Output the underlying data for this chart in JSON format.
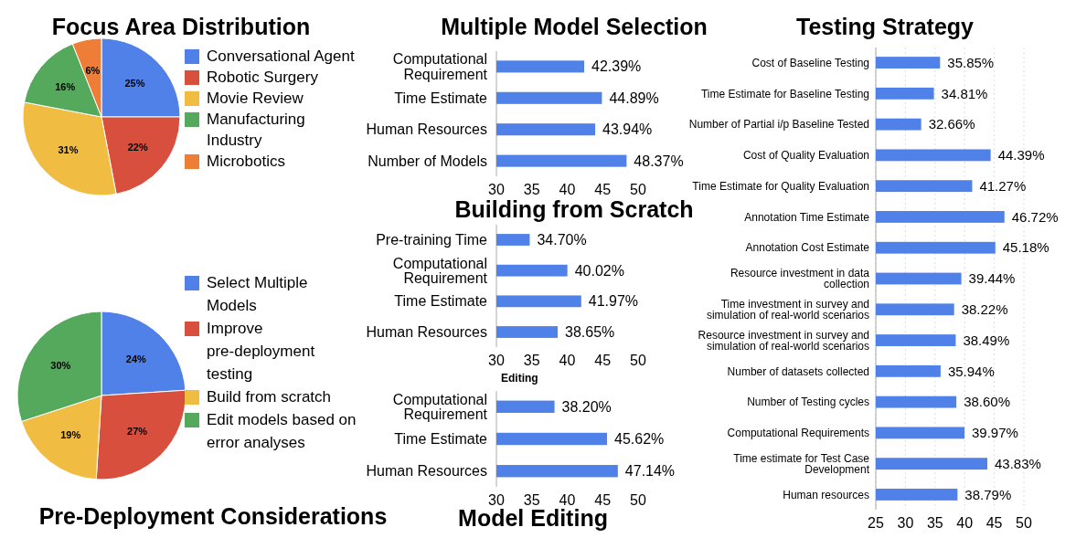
{
  "chart_data": [
    {
      "type": "pie",
      "title": "Focus Area Distribution",
      "categories": [
        "Conversational Agent",
        "Robotic Surgery",
        "Movie Review",
        "Manufacturing Industry",
        "Microbotics"
      ],
      "values": [
        25,
        22,
        31,
        16,
        6
      ],
      "colors": [
        "#4f81e8",
        "#d94f3d",
        "#f0bd42",
        "#55a95c",
        "#ee7d37"
      ],
      "value_labels": [
        "25%",
        "22%",
        "31%",
        "16%",
        "6%"
      ],
      "legend": "right"
    },
    {
      "type": "pie",
      "title": "Pre-Deployment Considerations",
      "categories": [
        "Select Multiple Models",
        "Improve pre-deployment testing",
        "Build from scratch",
        "Edit models based on error analyses"
      ],
      "values": [
        24,
        27,
        19,
        30
      ],
      "colors": [
        "#4f81e8",
        "#d94f3d",
        "#f0bd42",
        "#55a95c"
      ],
      "value_labels": [
        "24%",
        "27%",
        "19%",
        "30%"
      ],
      "legend": "right"
    },
    {
      "type": "bar",
      "orientation": "horizontal",
      "title": "Multiple Model Selection",
      "categories": [
        "Computational Requirement",
        "Time Estimate",
        "Human Resources",
        "Number of Models"
      ],
      "values": [
        42.39,
        44.89,
        43.94,
        48.37
      ],
      "color": "#4f81e8",
      "value_labels": [
        "42.39%",
        "44.89%",
        "43.94%",
        "48.37%"
      ],
      "xlim": [
        30,
        50
      ],
      "xticks": [
        30,
        35,
        40,
        45,
        50
      ]
    },
    {
      "type": "bar",
      "orientation": "horizontal",
      "title": "Building from Scratch",
      "categories": [
        "Pre-training Time",
        "Computational Requirement",
        "Time Estimate",
        "Human Resources"
      ],
      "values": [
        34.7,
        40.02,
        41.97,
        38.65
      ],
      "color": "#4f81e8",
      "value_labels": [
        "34.70%",
        "40.02%",
        "41.97%",
        "38.65%"
      ],
      "xlim": [
        30,
        50
      ],
      "xticks": [
        30,
        35,
        40,
        45,
        50
      ]
    },
    {
      "type": "bar",
      "orientation": "horizontal",
      "title": "Model Editing",
      "subtitle": "Editing",
      "categories": [
        "Computational Requirement",
        "Time Estimate",
        "Human Resources"
      ],
      "values": [
        38.2,
        45.62,
        47.14
      ],
      "color": "#4f81e8",
      "value_labels": [
        "38.20%",
        "45.62%",
        "47.14%"
      ],
      "xlim": [
        30,
        50
      ],
      "xticks": [
        30,
        35,
        40,
        45,
        50
      ]
    },
    {
      "type": "bar",
      "orientation": "horizontal",
      "title": "Testing Strategy",
      "categories": [
        "Cost of Baseline Testing",
        "Time Estimate for Baseline Testing",
        "Number of Partial i/p Baseline Tested",
        "Cost of Quality Evaluation",
        "Time Estimate for Quality Evaluation",
        "Annotation Time Estimate",
        "Annotation Cost Estimate",
        "Resource investment in data collection",
        "Time investment in survey and simulation of real-world scenarios",
        "Resource investment in survey and simulation of real-world scenarios",
        "Number of datasets collected",
        "Number of Testing cycles",
        "Computational Requirements",
        "Time estimate for Test Case Development",
        "Human resources"
      ],
      "values": [
        35.85,
        34.81,
        32.66,
        44.39,
        41.27,
        46.72,
        45.18,
        39.44,
        38.22,
        38.49,
        35.94,
        38.6,
        39.97,
        43.83,
        38.79
      ],
      "color": "#4f81e8",
      "value_labels": [
        "35.85%",
        "34.81%",
        "32.66%",
        "44.39%",
        "41.27%",
        "46.72%",
        "45.18%",
        "39.44%",
        "38.22%",
        "38.49%",
        "35.94%",
        "38.60%",
        "39.97%",
        "43.83%",
        "38.79%"
      ],
      "xlim": [
        25,
        50
      ],
      "xticks": [
        25,
        30,
        35,
        40,
        45,
        50
      ],
      "grid": "x"
    }
  ]
}
